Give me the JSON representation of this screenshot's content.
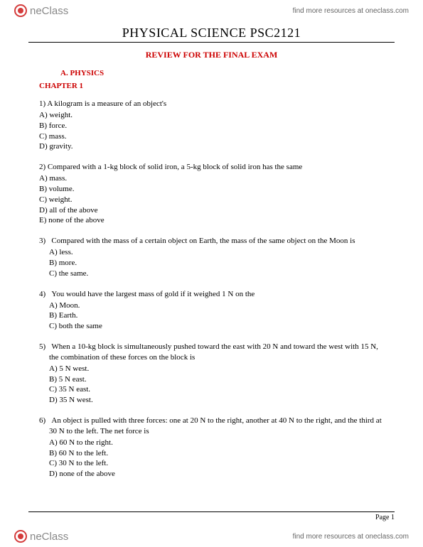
{
  "header": {
    "logo_text": "neClass",
    "resources_text": "find more resources at oneclass.com"
  },
  "title": "PHYSICAL SCIENCE PSC2121",
  "review_title": "REVIEW FOR THE FINAL EXAM",
  "section_label": "A.  PHYSICS",
  "chapter_label": "CHAPTER 1",
  "questions": [
    {
      "num": "1)",
      "text": "A kilogram is a measure of an object's",
      "opts": [
        "A) weight.",
        "B) force.",
        "C) mass.",
        "D) gravity."
      ]
    },
    {
      "num": "2)",
      "text": "Compared with a 1-kg block of solid iron, a 5-kg block of solid iron has the same",
      "opts": [
        "A) mass.",
        "B) volume.",
        "C) weight.",
        "D) all of the above",
        "E)  none of the above"
      ]
    },
    {
      "num": "3)",
      "text": "Compared with the mass of a certain object on Earth, the mass of the same object on the Moon is",
      "opts": [
        "A) less.",
        "B) more.",
        "C) the same."
      ]
    },
    {
      "num": "4)",
      "text": "You would have the largest mass of gold if it weighed 1 N on the",
      "opts": [
        "A) Moon.",
        "B) Earth.",
        "C) both the same"
      ]
    },
    {
      "num": "5)",
      "text": "When a 10-kg block is simultaneously pushed toward the east with 20 N and toward the west with 15 N, the combination of these forces on the block is",
      "opts": [
        "A) 5 N west.",
        "B) 5 N east.",
        "C) 35 N east.",
        "D) 35 N west."
      ]
    },
    {
      "num": "6)",
      "text": "An object is pulled with three forces: one at 20 N to the right, another at 40 N to the right, and the third at 30 N to the left. The net force is",
      "opts": [
        "A) 60 N to the right.",
        "B) 60 N to the left.",
        "C) 30 N to the left.",
        "D) none of the above"
      ]
    }
  ],
  "footer": {
    "page": "Page 1"
  }
}
